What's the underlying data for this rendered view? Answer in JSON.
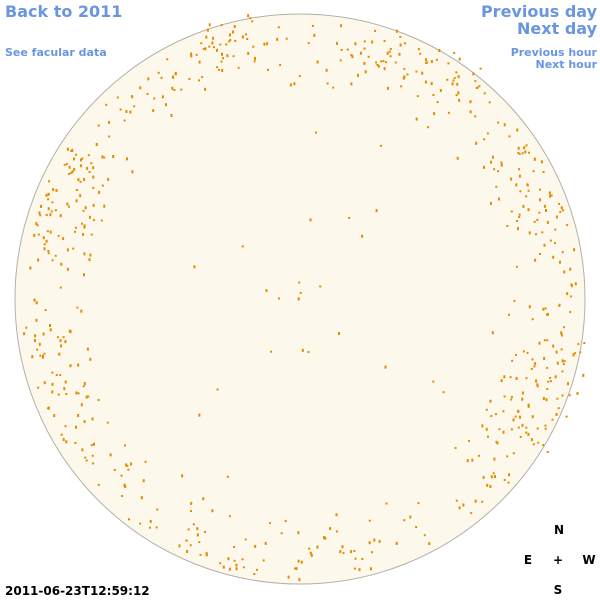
{
  "nav": {
    "back": "Back to 2011",
    "facular": "See facular data",
    "previous_day": "Previous day",
    "next_day": "Next day",
    "previous_hour": "Previous hour",
    "next_hour": "Next hour"
  },
  "timestamp": "2011-06-23T12:59:12",
  "compass": {
    "north": "N",
    "east": "E",
    "center": "+",
    "west": "W",
    "south": "S"
  }
}
